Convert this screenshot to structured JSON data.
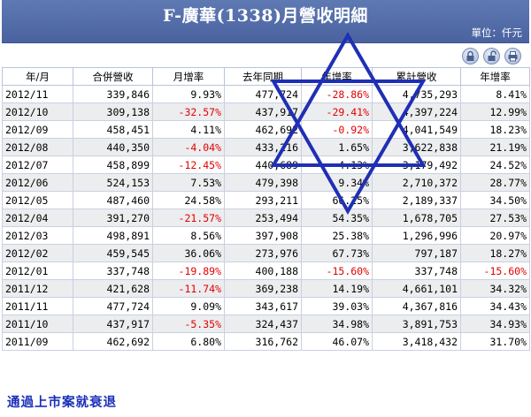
{
  "header": {
    "title": "F-廣華(1338)月營收明細",
    "unit_label": "單位：仟元"
  },
  "toolbar": {
    "buttons": [
      "lock-icon",
      "unlock-icon",
      "print-icon"
    ]
  },
  "table": {
    "columns": [
      "年/月",
      "合併營收",
      "月增率",
      "去年同期",
      "年增率",
      "累計營收",
      "年增率"
    ],
    "rows": [
      [
        "2012/11",
        "339,846",
        "9.93%",
        "477,724",
        "-28.86%",
        "4,735,293",
        "8.41%"
      ],
      [
        "2012/10",
        "309,138",
        "-32.57%",
        "437,917",
        "-29.41%",
        "4,397,224",
        "12.99%"
      ],
      [
        "2012/09",
        "458,451",
        "4.11%",
        "462,692",
        "-0.92%",
        "4,041,549",
        "18.23%"
      ],
      [
        "2012/08",
        "440,350",
        "-4.04%",
        "433,216",
        "1.65%",
        "3,622,838",
        "21.19%"
      ],
      [
        "2012/07",
        "458,899",
        "-12.45%",
        "440,689",
        "4.13%",
        "3,179,492",
        "24.52%"
      ],
      [
        "2012/06",
        "524,153",
        "7.53%",
        "479,398",
        "9.34%",
        "2,710,372",
        "28.77%"
      ],
      [
        "2012/05",
        "487,460",
        "24.58%",
        "293,211",
        "66.25%",
        "2,189,337",
        "34.50%"
      ],
      [
        "2012/04",
        "391,270",
        "-21.57%",
        "253,494",
        "54.35%",
        "1,678,705",
        "27.53%"
      ],
      [
        "2012/03",
        "498,891",
        "8.56%",
        "397,908",
        "25.38%",
        "1,296,996",
        "20.97%"
      ],
      [
        "2012/02",
        "459,545",
        "36.06%",
        "273,976",
        "67.73%",
        "797,187",
        "18.27%"
      ],
      [
        "2012/01",
        "337,748",
        "-19.89%",
        "400,188",
        "-15.60%",
        "337,748",
        "-15.60%"
      ],
      [
        "2011/12",
        "421,628",
        "-11.74%",
        "369,238",
        "14.19%",
        "4,661,101",
        "34.32%"
      ],
      [
        "2011/11",
        "477,724",
        "9.09%",
        "343,617",
        "39.03%",
        "4,367,816",
        "34.43%"
      ],
      [
        "2011/10",
        "437,917",
        "-5.35%",
        "324,437",
        "34.98%",
        "3,891,753",
        "34.93%"
      ],
      [
        "2011/09",
        "462,692",
        "6.80%",
        "316,762",
        "46.07%",
        "3,418,432",
        "31.70%"
      ]
    ]
  },
  "annotation": {
    "caption": "通過上市案就衰退",
    "shape": "six-pointed-star",
    "color": "#1f2fb5"
  },
  "colors": {
    "header_bg": "#5a72ad",
    "negative": "#e30000",
    "alt_row": "#ecedef"
  }
}
